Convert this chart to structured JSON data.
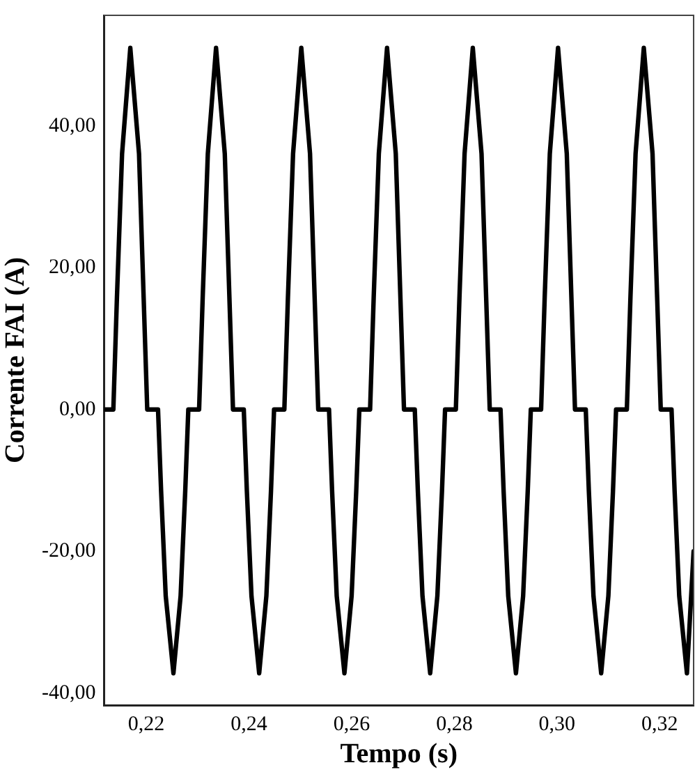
{
  "chart_data": {
    "type": "line",
    "xlabel": "Tempo (s)",
    "ylabel": "Corrente FAI (A)",
    "color": "#000000",
    "marker": "none",
    "line_style": "solid",
    "grid": false,
    "legend": false,
    "xlim": [
      0.2118,
      0.3266
    ],
    "ylim": [
      -41.7,
      55.6
    ],
    "xticks": [
      {
        "value": 0.22,
        "label": "0,22"
      },
      {
        "value": 0.24,
        "label": "0,24"
      },
      {
        "value": 0.26,
        "label": "0,26"
      },
      {
        "value": 0.28,
        "label": "0,28"
      },
      {
        "value": 0.3,
        "label": "0,30"
      },
      {
        "value": 0.32,
        "label": "0,32"
      }
    ],
    "yticks": [
      {
        "value": -40,
        "label": "-40,00"
      },
      {
        "value": -20,
        "label": "-20,00"
      },
      {
        "value": 0,
        "label": "0,00"
      },
      {
        "value": 20,
        "label": "20,00"
      },
      {
        "value": 40,
        "label": "40,00"
      }
    ],
    "x": [
      0.2118,
      0.2136,
      0.2143,
      0.2153,
      0.2169,
      0.2186,
      0.2195,
      0.2202,
      0.2223,
      0.2229,
      0.2238,
      0.2253,
      0.2267,
      0.2276,
      0.2282,
      0.2303,
      0.231,
      0.232,
      0.2336,
      0.2353,
      0.2362,
      0.2369,
      0.239,
      0.2396,
      0.2405,
      0.242,
      0.2434,
      0.2443,
      0.2449,
      0.2469,
      0.2476,
      0.2486,
      0.2502,
      0.2519,
      0.2528,
      0.2535,
      0.2556,
      0.2562,
      0.2571,
      0.2586,
      0.26,
      0.2609,
      0.2615,
      0.2636,
      0.2643,
      0.2653,
      0.2669,
      0.2686,
      0.2695,
      0.2702,
      0.2723,
      0.2729,
      0.2738,
      0.2753,
      0.2767,
      0.2776,
      0.2782,
      0.2803,
      0.281,
      0.282,
      0.2836,
      0.2853,
      0.2862,
      0.2869,
      0.289,
      0.2896,
      0.2905,
      0.292,
      0.2934,
      0.2943,
      0.2949,
      0.2969,
      0.2976,
      0.2986,
      0.3002,
      0.3019,
      0.3028,
      0.3035,
      0.3056,
      0.3062,
      0.3071,
      0.3086,
      0.31,
      0.3109,
      0.3115,
      0.3136,
      0.3143,
      0.3153,
      0.3169,
      0.3186,
      0.3195,
      0.3202,
      0.3223,
      0.3229,
      0.3238,
      0.3253,
      0.3266
    ],
    "values": [
      0,
      0,
      15.8,
      36.1,
      51,
      36.1,
      15.8,
      0,
      0,
      -11.5,
      -26.3,
      -37.2,
      -26.3,
      -11.5,
      0,
      0,
      15.8,
      36.1,
      51,
      36.1,
      15.8,
      0,
      0,
      -11.5,
      -26.3,
      -37.2,
      -26.3,
      -11.5,
      0,
      0,
      15.8,
      36.1,
      51,
      36.1,
      15.8,
      0,
      0,
      -11.5,
      -26.3,
      -37.2,
      -26.3,
      -11.5,
      0,
      0,
      15.8,
      36.1,
      51,
      36.1,
      15.8,
      0,
      0,
      -11.5,
      -26.3,
      -37.2,
      -26.3,
      -11.5,
      0,
      0,
      15.8,
      36.1,
      51,
      36.1,
      15.8,
      0,
      0,
      -11.5,
      -26.3,
      -37.2,
      -26.3,
      -11.5,
      0,
      0,
      15.8,
      36.1,
      51,
      36.1,
      15.8,
      0,
      0,
      -11.5,
      -26.3,
      -37.2,
      -26.3,
      -11.5,
      0,
      0,
      15.8,
      36.1,
      51,
      36.1,
      15.8,
      0,
      0,
      -11.5,
      -26.3,
      -37.2,
      -20
    ]
  }
}
